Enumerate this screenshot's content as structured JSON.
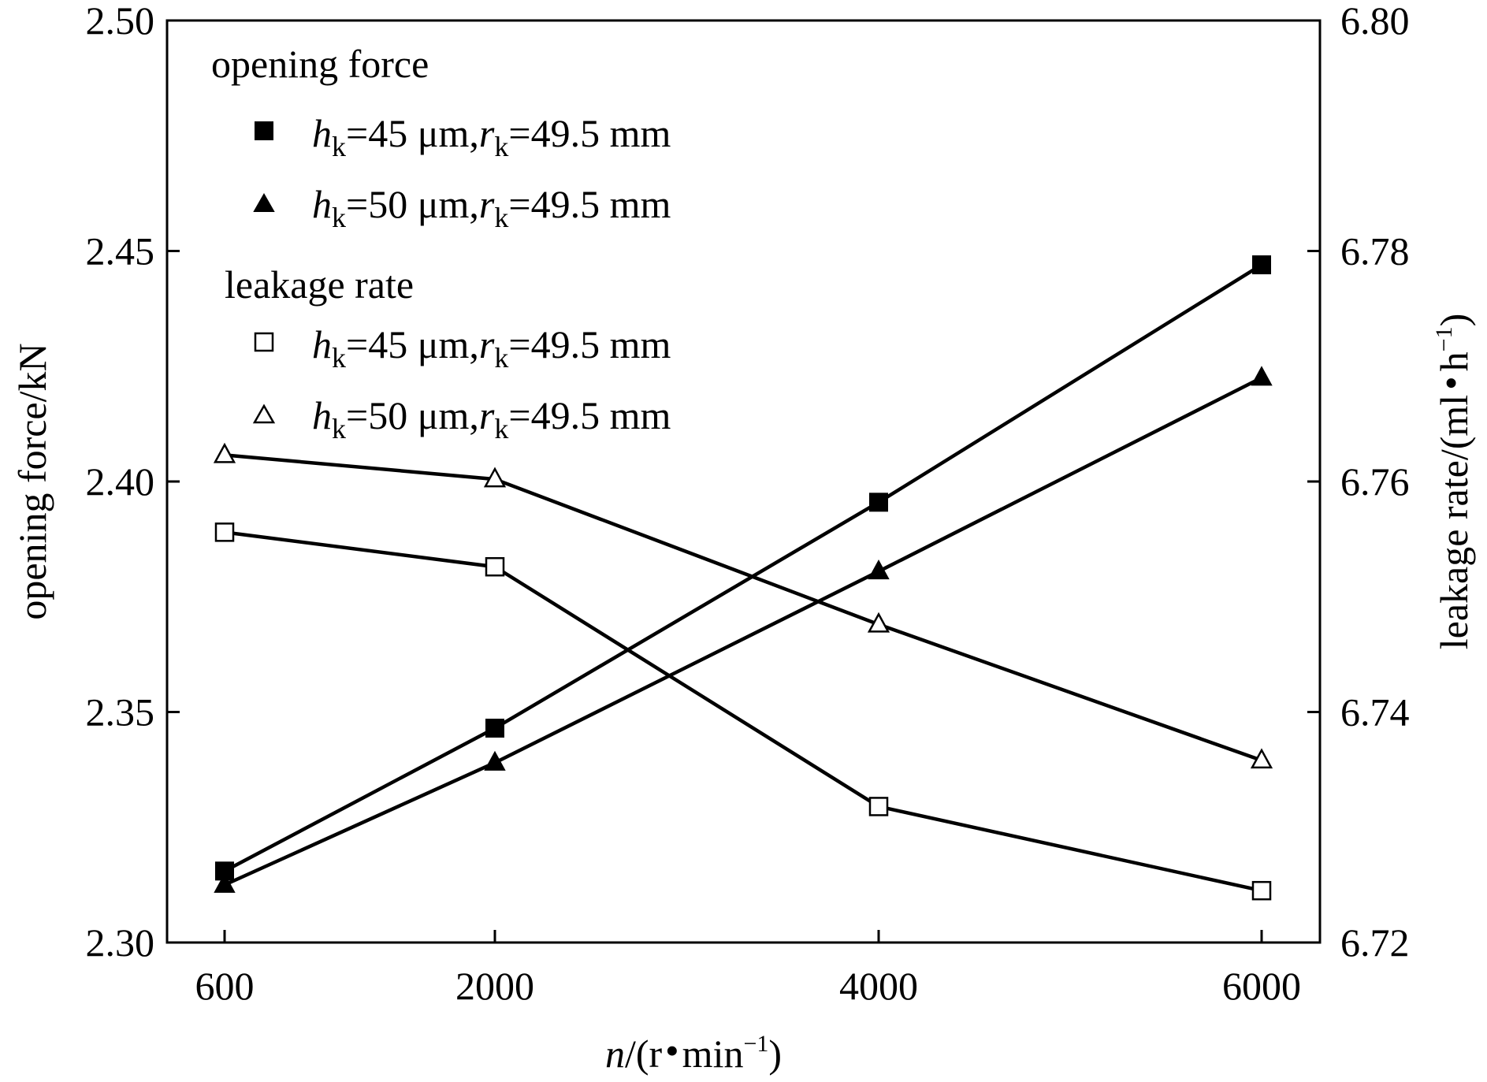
{
  "chart_data": {
    "type": "line",
    "x": [
      600,
      2000,
      4000,
      6000
    ],
    "x_ticks": [
      "600",
      "2000",
      "4000",
      "6000"
    ],
    "xlabel": {
      "var": "n",
      "unit_open": "/(r",
      "dot": "•",
      "unit_mid": "min",
      "sup": "−1",
      "unit_close": ")"
    },
    "left_axis": {
      "label": "opening force/kN",
      "ylim": [
        2.3,
        2.5
      ],
      "ticks": [
        "2.30",
        "2.35",
        "2.40",
        "2.45",
        "2.50"
      ]
    },
    "right_axis": {
      "label_main": "leakage rate/(ml",
      "dot": "•",
      "label_unit": "h",
      "sup": "−1",
      "label_close": ")",
      "ylim": [
        6.72,
        6.8
      ],
      "ticks": [
        "6.72",
        "6.74",
        "6.76",
        "6.78",
        "6.80"
      ]
    },
    "legend": {
      "placement": "top-left",
      "group_opening": "opening  force",
      "group_leakage": "leakage rate"
    },
    "series": [
      {
        "axis": "left",
        "marker": "square-filled",
        "group": "opening",
        "h_var": "h",
        "h_sub": "k",
        "h_val": "=45 μm,",
        "r_var": "r",
        "r_sub": "k",
        "r_val": "=49.5 mm",
        "values": [
          2.3155,
          2.3465,
          2.3955,
          2.447
        ]
      },
      {
        "axis": "left",
        "marker": "triangle-filled",
        "group": "opening",
        "h_var": "h",
        "h_sub": "k",
        "h_val": "=50 μm,",
        "r_var": "r",
        "r_sub": "k",
        "r_val": "=49.5 mm",
        "values": [
          2.3125,
          2.339,
          2.3805,
          2.4225
        ]
      },
      {
        "axis": "right",
        "marker": "square-open",
        "group": "leakage",
        "h_var": "h",
        "h_sub": "k",
        "h_val": "=45 μm,",
        "r_var": "r",
        "r_sub": "k",
        "r_val": "=49.5 mm",
        "values": [
          6.7556,
          6.7526,
          6.7318,
          6.7245
        ]
      },
      {
        "axis": "right",
        "marker": "triangle-open",
        "group": "leakage",
        "h_var": "h",
        "h_sub": "k",
        "h_val": "=50 μm,",
        "r_var": "r",
        "r_sub": "k",
        "r_val": "=49.5 mm",
        "values": [
          6.7623,
          6.7602,
          6.7476,
          6.7358
        ]
      }
    ],
    "colors": {
      "line": "#000000",
      "background": "#ffffff"
    },
    "grid": false
  }
}
